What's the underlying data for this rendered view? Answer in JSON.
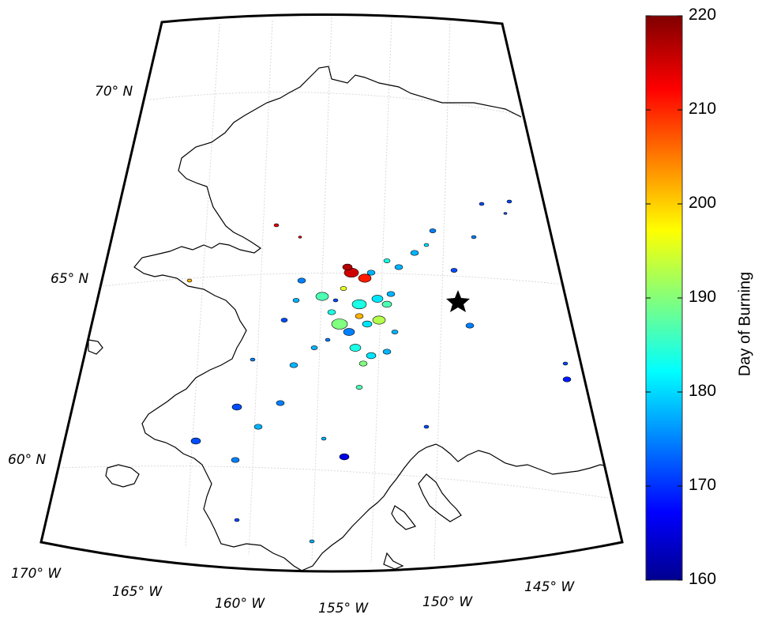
{
  "map": {
    "star_marker": "star",
    "latitude_labels": [
      "70° N",
      "65° N",
      "60° N"
    ],
    "longitude_labels": [
      "170° W",
      "165° W",
      "160° W",
      "155° W",
      "150° W",
      "145° W"
    ]
  },
  "colorbar": {
    "title": "Day of Burning",
    "ticks": [
      "220",
      "210",
      "200",
      "190",
      "180",
      "170",
      "160"
    ],
    "min": 160,
    "max": 220,
    "colormap": "jet"
  }
}
